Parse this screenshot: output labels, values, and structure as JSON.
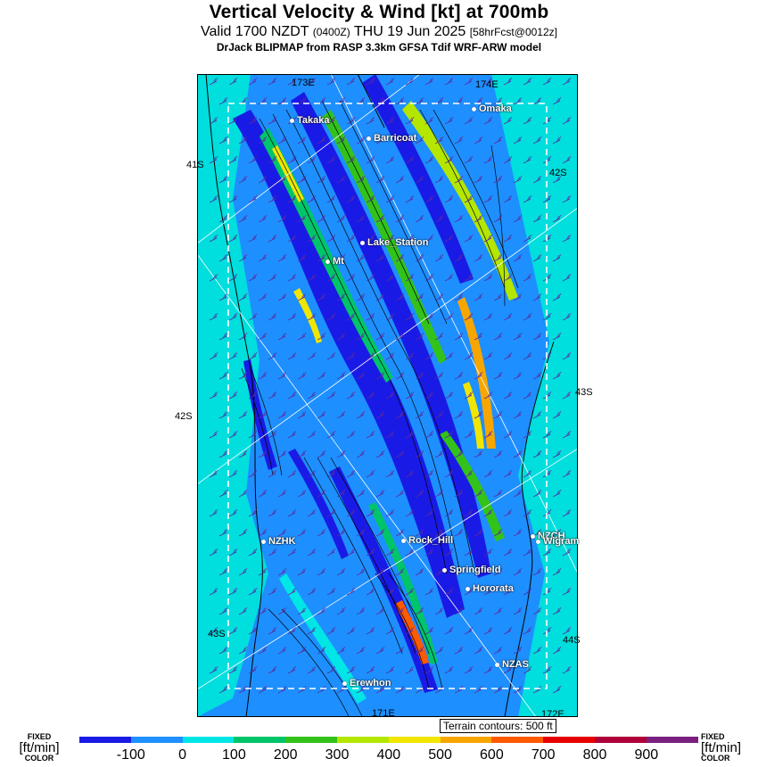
{
  "header": {
    "title": "Vertical Velocity & Wind [kt] at 700mb",
    "valid_prefix": "Valid 1700 NZDT",
    "valid_utc": "(0400Z)",
    "valid_date": "THU 19 Jun 2025",
    "forecast_tag": "[58hrFcst@0012z]",
    "model_line": "DrJack BLIPMAP from RASP 3.3km GFSA Tdif WRF-ARW model"
  },
  "map": {
    "grid_labels": {
      "lon_top_left": "173E",
      "lon_top_right": "174E",
      "lon_bottom_mid": "171E",
      "lon_bottom_right": "172E",
      "lat_41s": "41S",
      "lat_42s_left": "42S",
      "lat_42s_right": "42S",
      "lat_43s_right": "43S",
      "lat_43s_left": "43S",
      "lat_44s": "44S"
    },
    "places": {
      "takaka": "Takaka",
      "omaka": "Omaka",
      "barricoat": "Barricoat",
      "lake_station": "Lake_Station",
      "mt": "Mt",
      "nzhk": "NZHK",
      "rock_hill": "Rock_Hill",
      "nzch": "NZCH",
      "wigram": "Wigram",
      "springfield": "Springfield",
      "hororata": "Hororata",
      "nzas": "NZAS",
      "erewhon": "Erewhon"
    },
    "terrain_note": "Terrain contours: 500 ft"
  },
  "legend": {
    "fixed_label_top": "FIXED",
    "units_label": "[ft/min]",
    "fixed_label_bottom": "COLOR",
    "ticks": [
      "-100",
      "0",
      "100",
      "200",
      "300",
      "400",
      "500",
      "600",
      "700",
      "800",
      "900"
    ],
    "colors": [
      "#1a1ae6",
      "#1e90ff",
      "#00e6e6",
      "#00c46a",
      "#33c21a",
      "#b4e600",
      "#f0e600",
      "#f7a600",
      "#ff5a00",
      "#e60000",
      "#b0003a",
      "#7a1f80"
    ]
  }
}
